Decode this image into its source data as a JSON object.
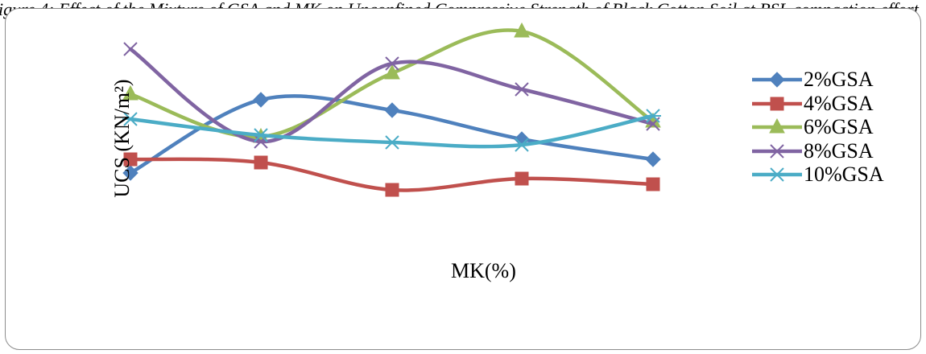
{
  "caption": "igure 4: Effect of the Mixture of GSA and MK on Unconfined Compressive Strength of Black Cotton Soil at BSL compaction effort",
  "chart_data": {
    "type": "line",
    "title": "",
    "xlabel": "MK(%)",
    "ylabel": "UCS (KN/m²)",
    "categories": [
      "",
      "",
      "",
      "",
      ""
    ],
    "ylim": [
      0,
      340
    ],
    "grid": false,
    "legend_position": "right",
    "series": [
      {
        "name": "2%GSA",
        "color": "#4f81bd",
        "marker": "diamond",
        "values": [
          135,
          226,
          213,
          177,
          152
        ]
      },
      {
        "name": "4%GSA",
        "color": "#c0504d",
        "marker": "square",
        "values": [
          152,
          148,
          114,
          128,
          121
        ]
      },
      {
        "name": "6%GSA",
        "color": "#9bbb59",
        "marker": "triangle",
        "values": [
          233,
          180,
          259,
          311,
          199
        ]
      },
      {
        "name": "8%GSA",
        "color": "#8064a2",
        "marker": "x",
        "values": [
          289,
          174,
          271,
          239,
          196
        ]
      },
      {
        "name": "10%GSA",
        "color": "#4bacc6",
        "marker": "asterisk",
        "values": [
          202,
          182,
          173,
          170,
          206
        ]
      }
    ]
  }
}
